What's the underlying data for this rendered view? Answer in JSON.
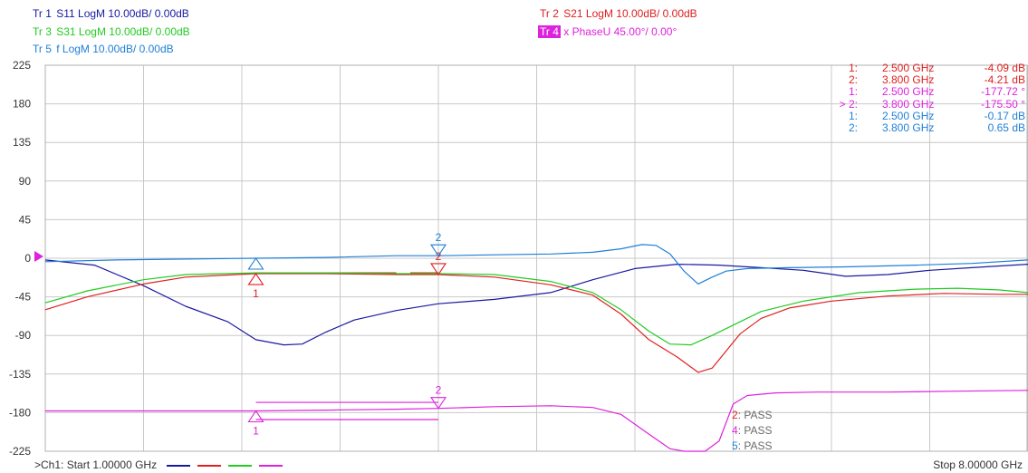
{
  "traces": [
    {
      "id": "Tr 1",
      "label": "S11 LogM 10.00dB/  0.00dB",
      "color": "#1a1aa0"
    },
    {
      "id": "Tr 2",
      "label": "S21 LogM 10.00dB/  0.00dB",
      "color": "#e02020"
    },
    {
      "id": "Tr 3",
      "label": "S31 LogM 10.00dB/  0.00dB",
      "color": "#22cc22"
    },
    {
      "id": "Tr 4",
      "label": "x PhaseU 45.00°/  0.00°",
      "color": "#dd22dd",
      "highlight": true
    },
    {
      "id": "Tr 5",
      "label": "f LogM 10.00dB/  0.00dB",
      "color": "#1f7fd6"
    }
  ],
  "marker_table": [
    {
      "num": "1:",
      "freq": "2.500  GHz",
      "value": "-4.09 dB",
      "color": "#e02020"
    },
    {
      "num": "2:",
      "freq": "3.800  GHz",
      "value": "-4.21 dB",
      "color": "#e02020"
    },
    {
      "num": "1:",
      "freq": "2.500  GHz",
      "value": "-177.72 °",
      "color": "#dd22dd"
    },
    {
      "num": "> 2:",
      "freq": "3.800  GHz",
      "value": "-175.50 °",
      "color": "#dd22dd"
    },
    {
      "num": "1:",
      "freq": "2.500  GHz",
      "value": "-0.17 dB",
      "color": "#1f7fd6"
    },
    {
      "num": "2:",
      "freq": "3.800  GHz",
      "value": "0.65 dB",
      "color": "#1f7fd6"
    }
  ],
  "pass_list": [
    {
      "num": "2",
      "text": ": PASS",
      "color": "#e02020"
    },
    {
      "num": "4",
      "text": ": PASS",
      "color": "#dd22dd"
    },
    {
      "num": "5",
      "text": ": PASS",
      "color": "#1f7fd6"
    }
  ],
  "footer": {
    "start": ">Ch1:  Start  1.00000 GHz",
    "stop": "Stop  8.00000 GHz"
  },
  "legend_colors": [
    "#1a1aa0",
    "#e02020",
    "#22cc22",
    "#dd22dd"
  ],
  "chart_data": {
    "type": "line",
    "x_range": [
      1.0,
      8.0
    ],
    "x_unit": "GHz",
    "ylim": [
      -225,
      225
    ],
    "yticks": [
      "225",
      "180",
      "135",
      "90",
      "45",
      "0",
      "-45",
      "-90",
      "-135",
      "-180",
      "-225"
    ],
    "grid": true,
    "reference_level": 0,
    "series": [
      {
        "name": "S11",
        "color": "#1a1aa0",
        "x": [
          1.0,
          1.35,
          1.7,
          2.0,
          2.3,
          2.5,
          2.7,
          2.83,
          3.0,
          3.2,
          3.5,
          3.8,
          4.2,
          4.6,
          4.9,
          5.2,
          5.5,
          5.8,
          6.1,
          6.4,
          6.7,
          7.0,
          7.3,
          7.6,
          8.0
        ],
        "y": [
          -2,
          -8,
          -32,
          -56,
          -74,
          -95,
          -101,
          -100,
          -86,
          -72,
          -61,
          -53,
          -48,
          -40,
          -25,
          -12,
          -7,
          -8,
          -11,
          -14,
          -21,
          -19,
          -14,
          -11,
          -7
        ]
      },
      {
        "name": "S21",
        "color": "#e02020",
        "x": [
          1.0,
          1.3,
          1.7,
          2.0,
          2.5,
          3.0,
          3.5,
          3.8,
          4.2,
          4.6,
          4.9,
          5.1,
          5.3,
          5.5,
          5.65,
          5.75,
          5.85,
          5.95,
          6.1,
          6.3,
          6.6,
          7.0,
          7.4,
          7.8,
          8.0
        ],
        "y": [
          -60,
          -45,
          -30,
          -22,
          -18,
          -18,
          -19,
          -19,
          -22,
          -31,
          -43,
          -65,
          -95,
          -115,
          -133,
          -128,
          -108,
          -88,
          -70,
          -58,
          -50,
          -44,
          -41,
          -42,
          -42
        ]
      },
      {
        "name": "S31",
        "color": "#22cc22",
        "x": [
          1.0,
          1.3,
          1.7,
          2.0,
          2.5,
          3.0,
          3.5,
          3.8,
          4.2,
          4.6,
          4.9,
          5.1,
          5.3,
          5.45,
          5.6,
          5.75,
          5.9,
          6.1,
          6.4,
          6.8,
          7.2,
          7.5,
          7.8,
          8.0
        ],
        "y": [
          -52,
          -38,
          -25,
          -19,
          -17,
          -17,
          -18,
          -18,
          -19,
          -27,
          -40,
          -60,
          -85,
          -100,
          -101,
          -90,
          -78,
          -62,
          -50,
          -40,
          -36,
          -35,
          -37,
          -40
        ]
      },
      {
        "name": "Phase",
        "color": "#dd22dd",
        "x": [
          1.0,
          2.0,
          2.5,
          3.0,
          3.5,
          3.8,
          4.2,
          4.6,
          4.9,
          5.1,
          5.3,
          5.45,
          5.55,
          5.7,
          5.8,
          5.9,
          6.0,
          6.2,
          6.5,
          7.0,
          7.5,
          8.0
        ],
        "y": [
          -178,
          -178,
          -178,
          -177,
          -176,
          -175,
          -173,
          -172,
          -174,
          -182,
          -205,
          -222,
          -225,
          -225,
          -213,
          -170,
          -160,
          -157,
          -156,
          -156,
          -155,
          -154
        ]
      },
      {
        "name": "f",
        "color": "#1f7fd6",
        "x": [
          1.0,
          1.5,
          2.0,
          2.5,
          3.0,
          3.5,
          3.8,
          4.2,
          4.6,
          4.9,
          5.1,
          5.25,
          5.35,
          5.45,
          5.55,
          5.65,
          5.75,
          5.85,
          6.0,
          6.3,
          6.7,
          7.2,
          7.6,
          8.0
        ],
        "y": [
          -4,
          -2,
          -1,
          0,
          1,
          3,
          3,
          4,
          5,
          7,
          11,
          16,
          15,
          5,
          -15,
          -30,
          -22,
          -15,
          -12,
          -11,
          -10,
          -8,
          -6,
          -2
        ]
      }
    ],
    "markers": [
      {
        "trace": "S21",
        "label": "1",
        "x": 2.5,
        "y": -18,
        "color": "#e02020",
        "dir": "up"
      },
      {
        "trace": "S21",
        "label": "2",
        "x": 3.8,
        "y": -19,
        "color": "#e02020",
        "dir": "down"
      },
      {
        "trace": "f",
        "label": "2",
        "x": 3.8,
        "y": 3,
        "color": "#1f7fd6",
        "dir": "down"
      },
      {
        "trace": "f",
        "label": "",
        "x": 2.5,
        "y": 0,
        "color": "#1f7fd6",
        "dir": "up"
      },
      {
        "trace": "Phase",
        "label": "1",
        "x": 2.5,
        "y": -178,
        "color": "#dd22dd",
        "dir": "up"
      },
      {
        "trace": "Phase",
        "label": "2",
        "x": 3.8,
        "y": -175,
        "color": "#dd22dd",
        "dir": "down"
      }
    ],
    "limit_lines": [
      {
        "color": "#dd22dd",
        "x": [
          2.5,
          3.8
        ],
        "y": -168
      },
      {
        "color": "#dd22dd",
        "x": [
          2.5,
          3.8
        ],
        "y": -188
      },
      {
        "color": "#e02020",
        "x": [
          3.0,
          3.5
        ],
        "y": -17
      },
      {
        "color": "#e02020",
        "x": [
          3.6,
          3.8
        ],
        "y": -17
      }
    ]
  }
}
